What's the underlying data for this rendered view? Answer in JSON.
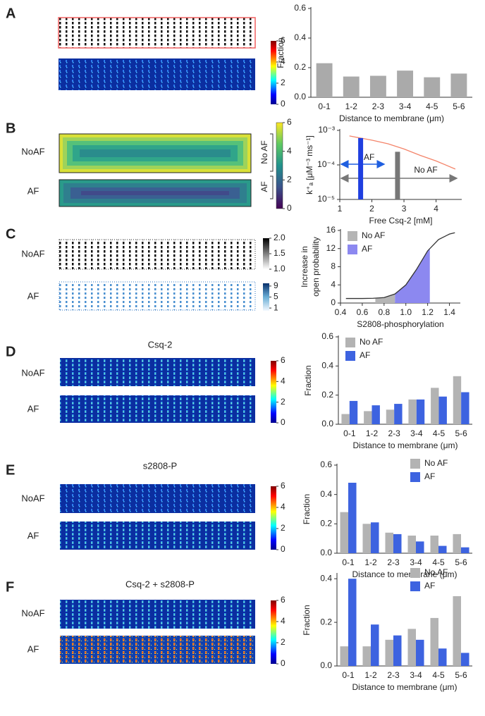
{
  "panels": [
    {
      "label": "A",
      "colorbars": [
        {
          "lim": [
            0,
            6
          ],
          "ticks": [
            0,
            2,
            4,
            6
          ]
        }
      ]
    },
    {
      "label": "B",
      "rows": [
        "NoAF",
        "AF"
      ],
      "brackets": [
        "No AF",
        "AF"
      ],
      "colorbars": [
        {
          "lim": [
            0,
            6
          ],
          "ticks": [
            0,
            2,
            4,
            6
          ]
        }
      ]
    },
    {
      "label": "C",
      "rows": [
        "NoAF",
        "AF"
      ],
      "colorbars": [
        {
          "lim": [
            1,
            2
          ],
          "ticks": [
            {
              "value": 1,
              "label": "1.0"
            },
            1.5,
            {
              "value": 2,
              "label": "2.0"
            }
          ]
        },
        {
          "lim": [
            0,
            10
          ],
          "ticks": [
            1,
            5,
            9
          ]
        }
      ]
    },
    {
      "label": "D",
      "title": "Csq-2",
      "rows": [
        "NoAF",
        "AF"
      ],
      "colorbars": [
        {
          "lim": [
            0,
            6
          ],
          "ticks": [
            0,
            2,
            4,
            6
          ]
        }
      ]
    },
    {
      "label": "E",
      "title": "s2808-P",
      "rows": [
        "NoAF",
        "AF"
      ],
      "colorbars": [
        {
          "lim": [
            0,
            6
          ],
          "ticks": [
            0,
            2,
            4,
            6
          ]
        }
      ]
    },
    {
      "label": "F",
      "title": "Csq-2 + s2808-P",
      "rows": [
        "NoAF",
        "AF"
      ],
      "colorbars": [
        {
          "lim": [
            0,
            6
          ],
          "ticks": [
            0,
            2,
            4,
            6
          ]
        }
      ]
    }
  ],
  "chart_data": [
    {
      "type": "bar",
      "categories": [
        "0-1",
        "1-2",
        "2-3",
        "3-4",
        "4-5",
        "5-6"
      ],
      "values": [
        0.23,
        0.14,
        0.145,
        0.18,
        0.135,
        0.16
      ],
      "color": "#aaaaaa",
      "ylim": [
        0,
        0.6
      ],
      "yticks": [
        {
          "value": 0,
          "label": "0.0"
        },
        0.2,
        0.4,
        0.6
      ],
      "xlabel": "Distance to membrane (μm)",
      "ylabel": "Fraction",
      "grid": false
    },
    {
      "type": "line",
      "log_y": true,
      "xlim": [
        1,
        4.8
      ],
      "xticks": [
        1,
        2,
        3,
        4
      ],
      "ylim": [
        1e-05,
        0.001
      ],
      "yticks": [
        {
          "value": 1e-05,
          "label": "10⁻⁵"
        },
        {
          "value": 0.0001,
          "label": "10⁻⁴"
        },
        {
          "value": 0.001,
          "label": "10⁻³"
        }
      ],
      "xlabel": "Free Csq-2 [mM]",
      "ylabel": "k⁺ₐ [μM⁻³ ms⁻¹]",
      "grid": false,
      "series": [
        {
          "color": "#f4846a",
          "x": [
            1.3,
            2,
            2.5,
            3,
            3.5,
            4,
            4.6
          ],
          "values": [
            0.00069,
            0.00052,
            0.00041,
            0.00029,
            0.00019,
            0.00013,
            7.6e-05
          ]
        },
        {
          "name": "AF",
          "color": "#1f3fe0",
          "style": "bar",
          "x": [
            1.65
          ],
          "values": [
            0.0006
          ]
        },
        {
          "name": "No AF",
          "color": "#777777",
          "style": "bar",
          "x": [
            2.8
          ],
          "values": [
            0.00024
          ]
        }
      ]
    },
    {
      "type": "line",
      "xlim": [
        0.4,
        1.5
      ],
      "xticks": [
        0.4,
        0.6,
        0.8,
        {
          "value": 1,
          "label": "1.0"
        },
        1.2,
        1.4
      ],
      "ylim": [
        0,
        16
      ],
      "yticks": [
        0,
        4,
        8,
        12,
        16
      ],
      "xlabel": "S2808-phosphorylation",
      "ylabel": [
        "Increase in",
        "open probability"
      ],
      "legend": "upper left",
      "grid": false,
      "series": [
        {
          "color": "#333333",
          "x": [
            0.45,
            0.6,
            0.7,
            0.8,
            0.9,
            1.0,
            1.1,
            1.2,
            1.3,
            1.4,
            1.45
          ],
          "values": [
            1,
            1,
            1.05,
            1.2,
            2,
            4,
            7.5,
            11.5,
            14,
            15.2,
            15.5
          ]
        }
      ],
      "regions": [
        {
          "name": "No AF",
          "color": "#b5b5b5",
          "x": [
            0.72,
            0.9
          ]
        },
        {
          "name": "AF",
          "color": "#8c88f0",
          "x": [
            0.9,
            1.22
          ]
        }
      ]
    },
    {
      "type": "bar",
      "categories": [
        "0-1",
        "1-2",
        "2-3",
        "3-4",
        "4-5",
        "5-6"
      ],
      "ylim": [
        0,
        0.6
      ],
      "yticks": [
        {
          "value": 0,
          "label": "0.0"
        },
        0.2,
        0.4,
        0.6
      ],
      "xlabel": "Distance to membrane (μm)",
      "ylabel": "Fraction",
      "legend": "upper left",
      "grid": false,
      "series": [
        {
          "name": "No AF",
          "color": "#b3b3b3",
          "values": [
            0.07,
            0.09,
            0.1,
            0.17,
            0.25,
            0.33
          ]
        },
        {
          "name": "AF",
          "color": "#3d63e0",
          "values": [
            0.16,
            0.13,
            0.14,
            0.17,
            0.19,
            0.22
          ]
        }
      ]
    },
    {
      "type": "bar",
      "categories": [
        "0-1",
        "1-2",
        "2-3",
        "3-4",
        "4-5",
        "5-6"
      ],
      "ylim": [
        0,
        0.6
      ],
      "yticks": [
        {
          "value": 0,
          "label": "0.0"
        },
        0.2,
        0.4,
        0.6
      ],
      "xlabel": "Distance to membrane (μm)",
      "ylabel": "Fraction",
      "legend": "upper right",
      "grid": false,
      "series": [
        {
          "name": "No AF",
          "color": "#b3b3b3",
          "values": [
            0.28,
            0.2,
            0.14,
            0.12,
            0.12,
            0.13
          ]
        },
        {
          "name": "AF",
          "color": "#3d63e0",
          "values": [
            0.48,
            0.21,
            0.13,
            0.08,
            0.05,
            0.04
          ]
        }
      ]
    },
    {
      "type": "bar",
      "categories": [
        "0-1",
        "1-2",
        "2-3",
        "3-4",
        "4-5",
        "5-6"
      ],
      "ylim": [
        0,
        0.42
      ],
      "yticks": [
        {
          "value": 0,
          "label": "0.0"
        },
        0.2,
        0.4
      ],
      "xlabel": "Distance to membrane (μm)",
      "ylabel": "Fraction",
      "legend": "upper right",
      "grid": false,
      "series": [
        {
          "name": "No AF",
          "color": "#b3b3b3",
          "values": [
            0.09,
            0.09,
            0.12,
            0.17,
            0.22,
            0.32
          ]
        },
        {
          "name": "AF",
          "color": "#3d63e0",
          "values": [
            0.4,
            0.19,
            0.14,
            0.12,
            0.08,
            0.06
          ]
        }
      ]
    }
  ]
}
